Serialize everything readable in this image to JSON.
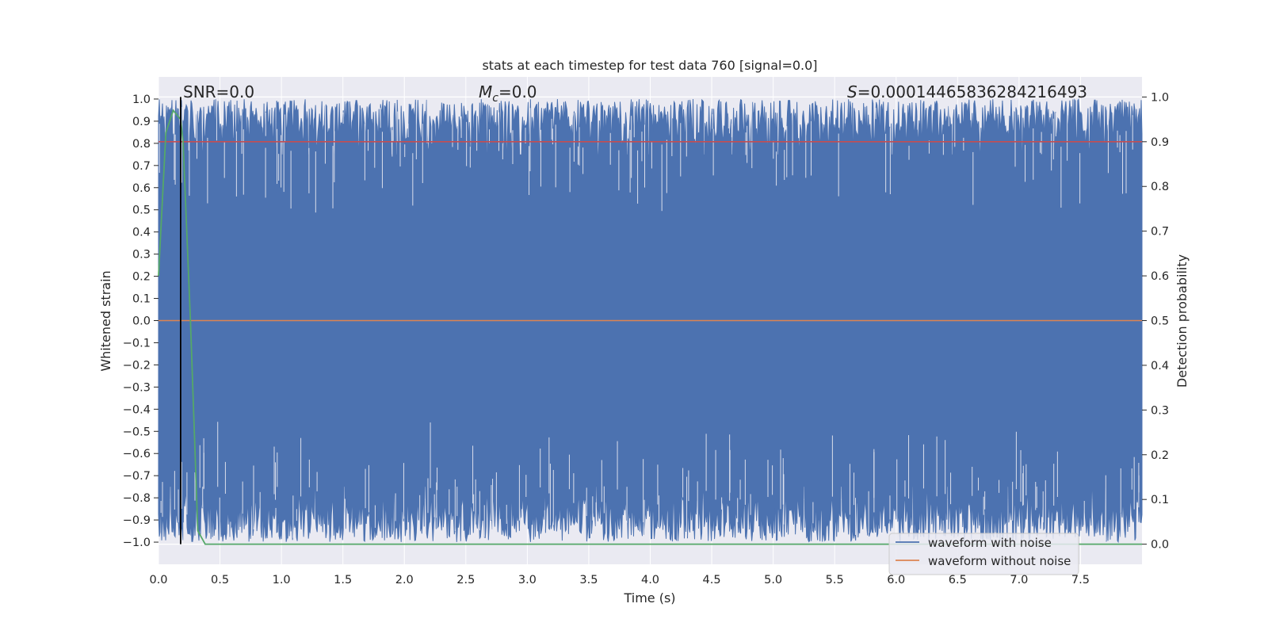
{
  "chart_data": {
    "type": "line",
    "title": "stats at each timestep for test data 760 [signal=0.0]",
    "xlabel": "Time (s)",
    "ylabel": "Whitened strain",
    "y2label": "Detection probability",
    "xlim": [
      0.0,
      8.0
    ],
    "ylim": [
      -1.1,
      1.1
    ],
    "y2lim": [
      -0.045,
      1.045
    ],
    "x_ticks": [
      "0.0",
      "0.5",
      "1.0",
      "1.5",
      "2.0",
      "2.5",
      "3.0",
      "3.5",
      "4.0",
      "4.5",
      "5.0",
      "5.5",
      "6.0",
      "6.5",
      "7.0",
      "7.5"
    ],
    "x_tick_values": [
      0.0,
      0.5,
      1.0,
      1.5,
      2.0,
      2.5,
      3.0,
      3.5,
      4.0,
      4.5,
      5.0,
      5.5,
      6.0,
      6.5,
      7.0,
      7.5
    ],
    "y_ticks": [
      "1.0",
      "0.9",
      "0.8",
      "0.7",
      "0.6",
      "0.5",
      "0.4",
      "0.3",
      "0.2",
      "0.1",
      "0.0",
      "−0.1",
      "−0.2",
      "−0.3",
      "−0.4",
      "−0.5",
      "−0.6",
      "−0.7",
      "−0.8",
      "−0.9",
      "−1.0"
    ],
    "y_tick_values": [
      1.0,
      0.9,
      0.8,
      0.7,
      0.6,
      0.5,
      0.4,
      0.3,
      0.2,
      0.1,
      0.0,
      -0.1,
      -0.2,
      -0.3,
      -0.4,
      -0.5,
      -0.6,
      -0.7,
      -0.8,
      -0.9,
      -1.0
    ],
    "y2_ticks": [
      "1.0",
      "0.9",
      "0.8",
      "0.7",
      "0.6",
      "0.5",
      "0.4",
      "0.3",
      "0.2",
      "0.1",
      "0.0"
    ],
    "y2_tick_values": [
      1.0,
      0.9,
      0.8,
      0.7,
      0.6,
      0.5,
      0.4,
      0.3,
      0.2,
      0.1,
      0.0
    ],
    "annotations": {
      "snr_text": "SNR=0.0",
      "mc_symbol": "M",
      "mc_sub": "c",
      "mc_value": "=0.0",
      "s_symbol": "S",
      "s_value": "=0.00014465836284216493"
    },
    "legend": {
      "placement": "lower-right",
      "entries": [
        "waveform with noise",
        "waveform without noise"
      ]
    },
    "series": [
      {
        "name": "waveform with noise",
        "color": "#4c72b0",
        "kind": "noise band",
        "upper_envelope_range": [
          0.75,
          1.0
        ],
        "lower_envelope_range": [
          -1.0,
          -0.75
        ]
      },
      {
        "name": "waveform without noise",
        "color": "#dd8452",
        "x": [
          0.0,
          8.0
        ],
        "y": [
          0.0,
          0.0
        ]
      },
      {
        "name": "",
        "color": "#55a868",
        "axis": "right",
        "x": [
          0.0,
          0.06,
          0.12,
          0.18,
          0.2,
          0.26,
          0.32,
          0.38,
          0.45,
          8.0
        ],
        "y": [
          0.6,
          0.92,
          0.97,
          0.95,
          0.9,
          0.5,
          0.03,
          0.0,
          0.0,
          0.0
        ]
      },
      {
        "name": "",
        "color": "#c44e52",
        "axis": "right",
        "x": [
          0.0,
          8.0
        ],
        "y": [
          0.9,
          0.9
        ]
      }
    ],
    "vertical_marker": {
      "x": 0.18,
      "color": "#000000"
    }
  },
  "colors": {
    "plot_background": "#eaeaf2",
    "grid": "#ffffff"
  }
}
